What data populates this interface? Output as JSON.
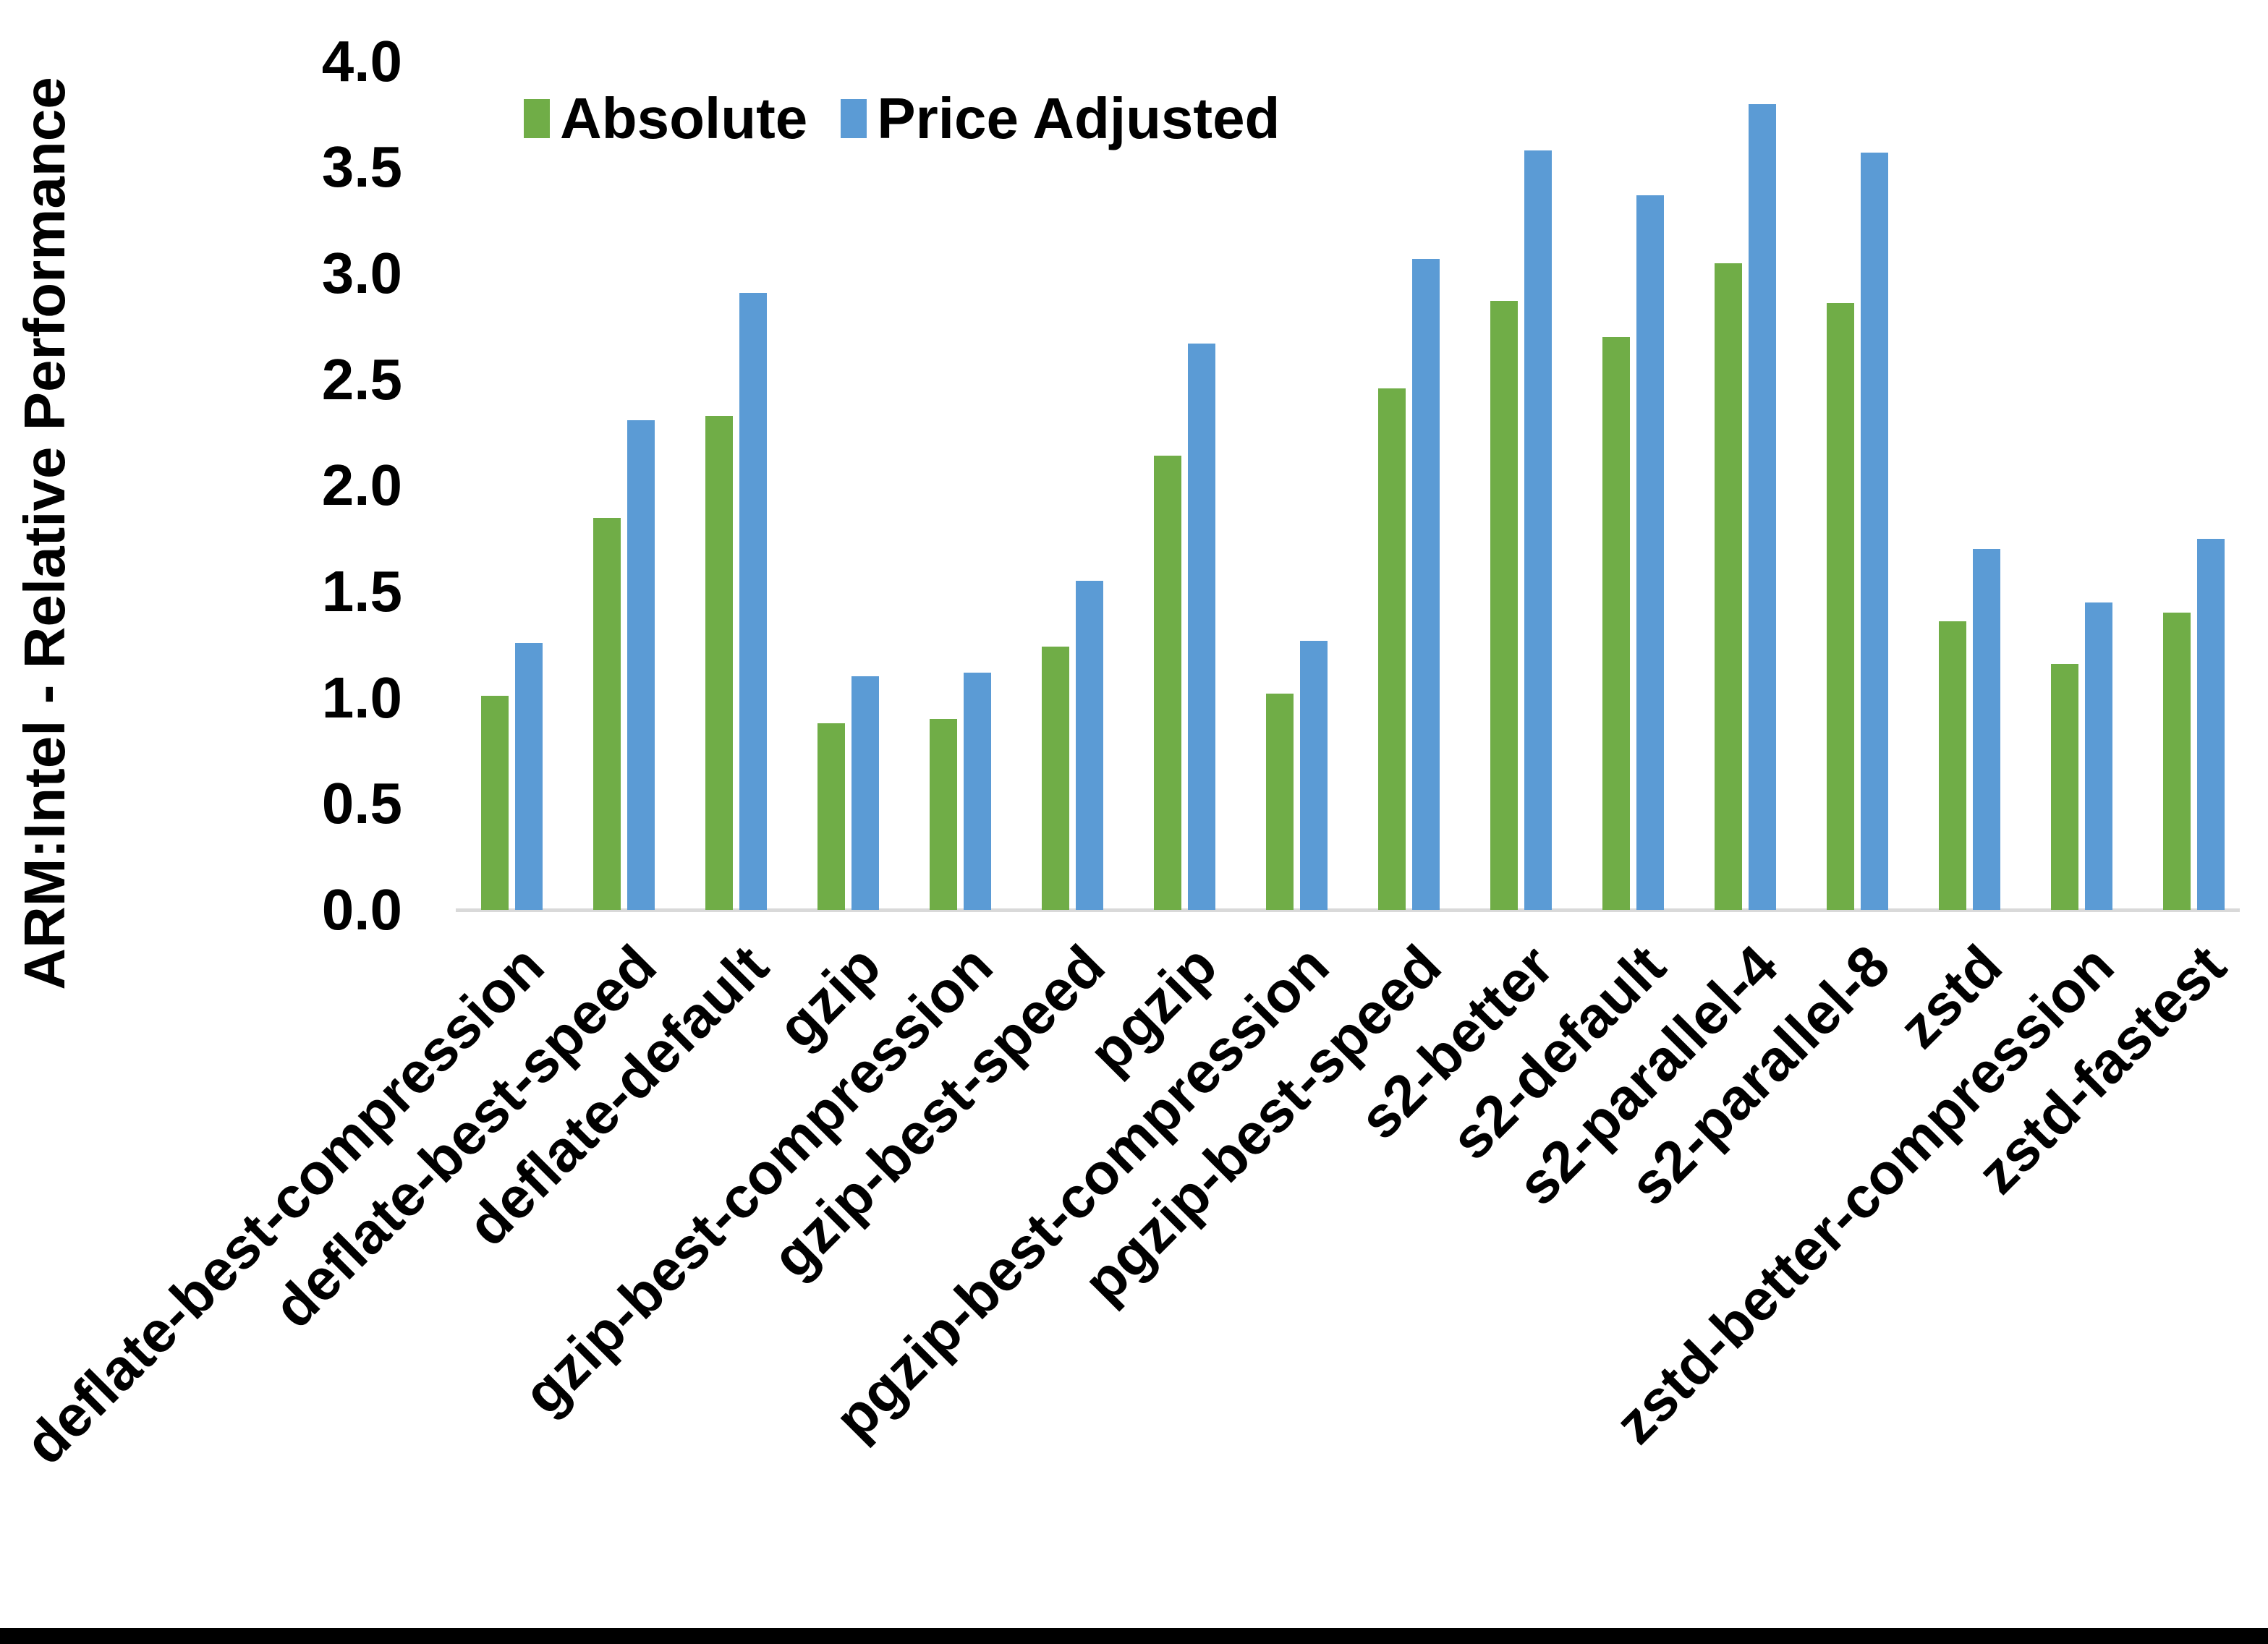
{
  "figure": {
    "background": "#FFFFFF",
    "bottom_border_color": "#000000",
    "axis_line_color": "#D9D9D9"
  },
  "chart_data": {
    "type": "bar",
    "title": "",
    "xlabel": "",
    "ylabel": "ARM:Intel - Relative Performance",
    "ylim": [
      0,
      4
    ],
    "grid": false,
    "legend_position": "top-left-of-plot",
    "yticks": [
      4.0,
      3.5,
      3.0,
      2.5,
      2.0,
      1.5,
      1.0,
      0.5,
      0.0
    ],
    "ytick_labels": [
      "4.0",
      "3.5",
      "3.0",
      "2.5",
      "2.0",
      "1.5",
      "1.0",
      "0.5",
      "0.0"
    ],
    "categories": [
      "deflate-best-compression",
      "deflate-best-speed",
      "deflate-default",
      "gzip",
      "gzip-best-compression",
      "gzip-best-speed",
      "pgzip",
      "pgzip-best-compression",
      "pgzip-best-speed",
      "s2-better",
      "s2-default",
      "s2-parallel-4",
      "s2-parallel-8",
      "zstd",
      "zstd-better-compression",
      "zstd-fastest"
    ],
    "series": [
      {
        "name": "Absolute",
        "color": "#70AD47",
        "values": [
          1.01,
          1.85,
          2.33,
          0.88,
          0.9,
          1.24,
          2.14,
          1.02,
          2.46,
          2.87,
          2.7,
          3.05,
          2.86,
          1.36,
          1.16,
          1.4
        ]
      },
      {
        "name": "Price Adjusted",
        "color": "#5B9BD5",
        "values": [
          1.26,
          2.31,
          2.91,
          1.1,
          1.12,
          1.55,
          2.67,
          1.27,
          3.07,
          3.58,
          3.37,
          3.8,
          3.57,
          1.7,
          1.45,
          1.75
        ]
      }
    ]
  }
}
